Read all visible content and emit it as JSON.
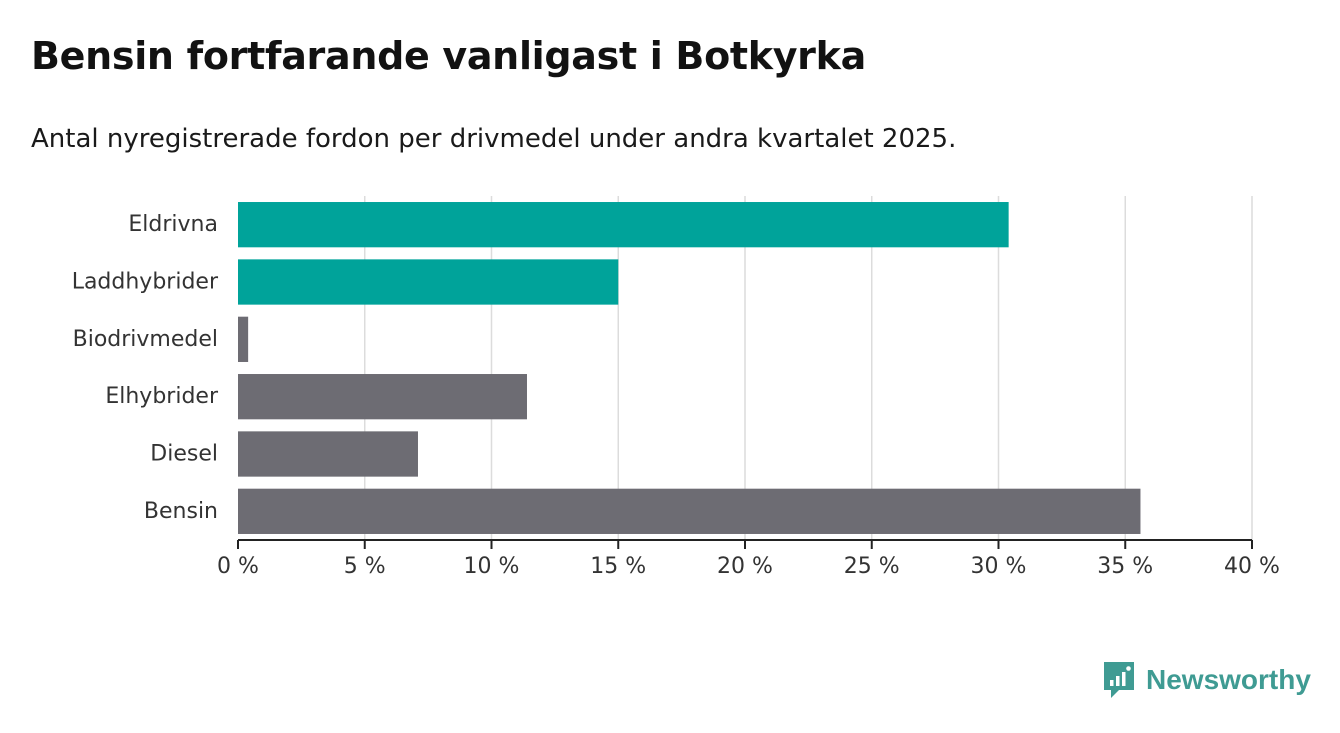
{
  "title": "Bensin fortfarande vanligast i Botkyrka",
  "subtitle": "Antal nyregistrerade fordon per drivmedel under andra kvartalet 2025.",
  "brand": {
    "name": "Newsworthy",
    "icon": "newsworthy-logo-icon"
  },
  "colors": {
    "highlight": "#00a39a",
    "default": "#6d6c73",
    "grid": "#dcdcdc",
    "axis": "#222222"
  },
  "chart_data": {
    "type": "bar",
    "orientation": "horizontal",
    "categories": [
      "Eldrivna",
      "Laddhybrider",
      "Biodrivmedel",
      "Elhybrider",
      "Diesel",
      "Bensin"
    ],
    "values": [
      30.4,
      15.0,
      0.4,
      11.4,
      7.1,
      35.6
    ],
    "highlighted": [
      "Eldrivna",
      "Laddhybrider"
    ],
    "xlim": [
      0,
      40
    ],
    "ticks": [
      0,
      5,
      10,
      15,
      20,
      25,
      30,
      35,
      40
    ],
    "tick_labels": [
      "0 %",
      "5 %",
      "10 %",
      "15 %",
      "20 %",
      "25 %",
      "30 %",
      "35 %",
      "40 %"
    ],
    "grid": true
  }
}
